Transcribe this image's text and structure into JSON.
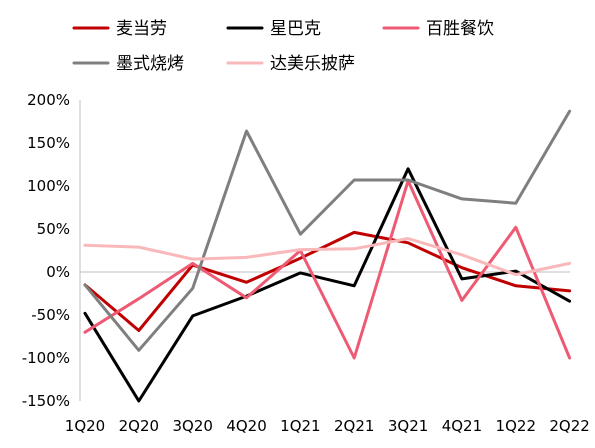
{
  "chart_data": {
    "type": "line",
    "categories": [
      "1Q20",
      "2Q20",
      "3Q20",
      "4Q20",
      "1Q21",
      "2Q21",
      "3Q21",
      "4Q21",
      "1Q22",
      "2Q22"
    ],
    "ylim": [
      -150,
      200
    ],
    "yticks": [
      -150,
      -100,
      -50,
      0,
      50,
      100,
      150,
      200
    ],
    "ytick_labels": [
      "-150%",
      "-100%",
      "-50%",
      "0%",
      "50%",
      "100%",
      "150%",
      "200%"
    ],
    "grid": false,
    "legend_position": "top",
    "series": [
      {
        "name": "麦当劳",
        "color": "#c00000",
        "values": [
          -15,
          -68,
          8,
          -12,
          16,
          46,
          34,
          5,
          -16,
          -22
        ]
      },
      {
        "name": "星巴克",
        "color": "#000000",
        "values": [
          -48,
          -150,
          -51,
          -28,
          -1,
          -16,
          120,
          -8,
          1,
          -34
        ]
      },
      {
        "name": "百胜餐饮",
        "color": "#ee5a73",
        "values": [
          -70,
          -31,
          10,
          -30,
          25,
          -100,
          106,
          -33,
          52,
          -100
        ]
      },
      {
        "name": "墨式烧烤",
        "color": "#7f7f7f",
        "values": [
          -15,
          -91,
          -19,
          164,
          44,
          107,
          107,
          85,
          80,
          187
        ]
      },
      {
        "name": "达美乐披萨",
        "color": "#f9b8ba",
        "values": [
          31,
          29,
          15,
          17,
          26,
          27,
          39,
          20,
          -3,
          10
        ]
      }
    ]
  }
}
